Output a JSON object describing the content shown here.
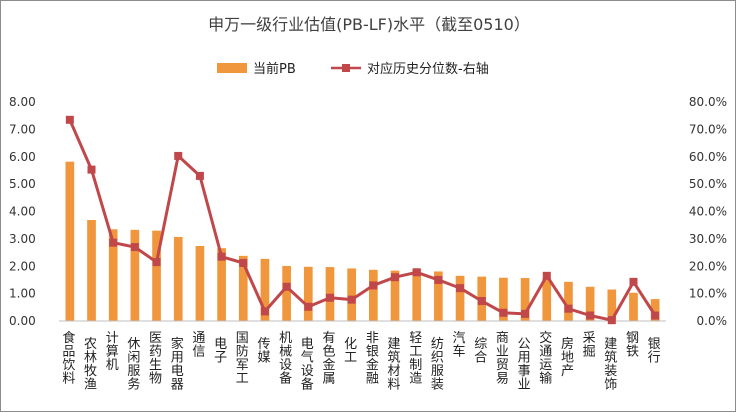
{
  "chart_data": {
    "type": "bar",
    "title": "申万一级行业估值(PB-LF)水平（截至0510）",
    "categories": [
      "食品饮料",
      "农林牧渔",
      "计算机",
      "休闲服务",
      "医药生物",
      "家用电器",
      "通信",
      "电子",
      "国防军工",
      "传媒",
      "机械设备",
      "电气设备",
      "有色金属",
      "化工",
      "非银金融",
      "建筑材料",
      "轻工制造",
      "纺织服装",
      "汽车",
      "综合",
      "商业贸易",
      "公用事业",
      "交通运输",
      "房地产",
      "采掘",
      "建筑装饰",
      "钢铁",
      "银行"
    ],
    "series": [
      {
        "name": "当前PB",
        "type": "bar",
        "axis": "left",
        "color": "#f0963c",
        "values": [
          5.82,
          3.69,
          3.35,
          3.33,
          3.3,
          3.07,
          2.74,
          2.66,
          2.38,
          2.27,
          2.01,
          1.98,
          1.97,
          1.92,
          1.87,
          1.84,
          1.9,
          1.81,
          1.65,
          1.62,
          1.58,
          1.57,
          1.56,
          1.43,
          1.25,
          1.15,
          1.03,
          0.8
        ]
      },
      {
        "name": "对应历史分位数-右轴",
        "type": "line",
        "axis": "right",
        "color": "#c0474a",
        "values": [
          73.5,
          55.3,
          28.6,
          27.0,
          21.5,
          60.3,
          53.0,
          23.5,
          21.2,
          3.5,
          12.5,
          5.2,
          8.5,
          7.8,
          13.0,
          16.0,
          17.8,
          15.0,
          12.0,
          7.3,
          3.0,
          2.6,
          16.5,
          4.5,
          2.0,
          0.3,
          14.3,
          2.0
        ]
      }
    ],
    "y_left": {
      "min": 0,
      "max": 8,
      "step": 1,
      "tick_labels": [
        "0.00",
        "1.00",
        "2.00",
        "3.00",
        "4.00",
        "5.00",
        "6.00",
        "7.00",
        "8.00"
      ]
    },
    "y_right": {
      "min": 0,
      "max": 80,
      "step": 10,
      "tick_labels": [
        "0.0%",
        "10.0%",
        "20.0%",
        "30.0%",
        "40.0%",
        "50.0%",
        "60.0%",
        "70.0%",
        "80.0%"
      ]
    },
    "legend": {
      "placement": "top-center"
    },
    "grid": false
  }
}
